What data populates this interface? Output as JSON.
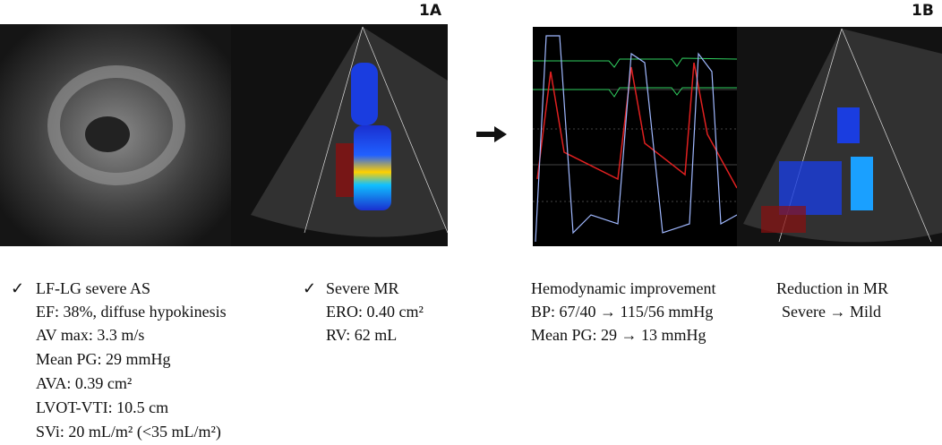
{
  "figure": {
    "panel_labels": [
      "1A",
      "1B"
    ],
    "before": {
      "aortic": {
        "check": "✓",
        "lines": [
          "LF-LG severe AS",
          "EF: 38%, diffuse hypokinesis",
          "AV max: 3.3 m/s",
          "Mean PG: 29 mmHg",
          "AVA: 0.39 cm²",
          "LVOT-VTI: 10.5 cm",
          "SVi: 20 mL/m² (<35 mL/m²)"
        ]
      },
      "mitral": {
        "check": "✓",
        "lines": [
          "Severe MR",
          "ERO: 0.40 cm²",
          "RV: 62 mL"
        ]
      }
    },
    "after": {
      "hemodynamic": {
        "lines": [
          "Hemodynamic improvement",
          "BP: 67/40 → 115/56 mmHg",
          "Mean PG: 29 → 13 mmHg"
        ]
      },
      "mitral": {
        "lines": [
          "Reduction in MR",
          "Severe → Mild"
        ]
      }
    }
  }
}
